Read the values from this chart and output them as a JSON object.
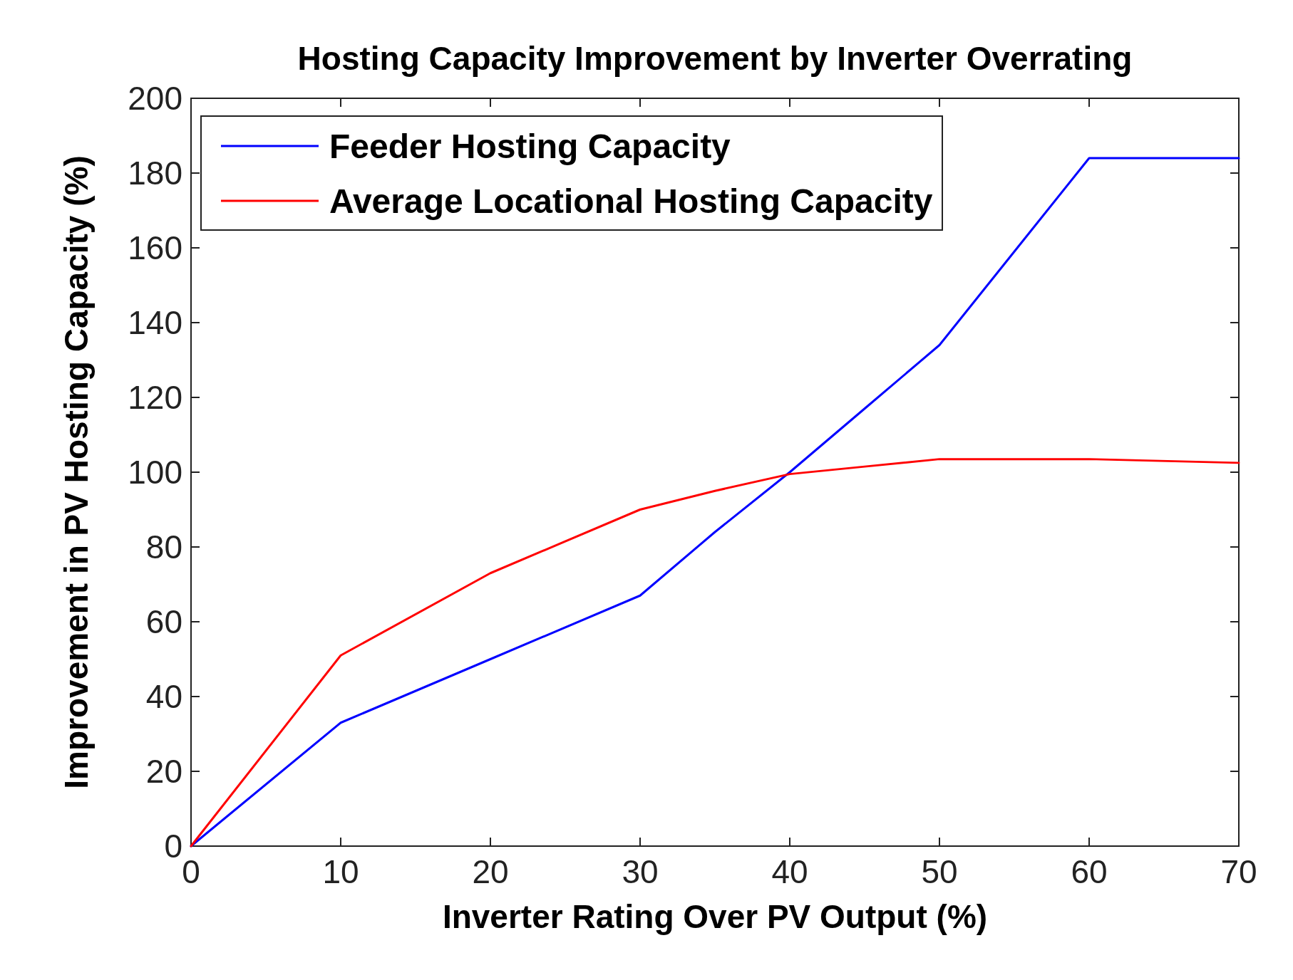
{
  "chart_data": {
    "type": "line",
    "title": "Hosting Capacity Improvement by Inverter Overrating",
    "xlabel": "Inverter Rating Over PV Output (%)",
    "ylabel": "Improvement in PV Hosting Capacity (%)",
    "xlim": [
      0,
      70
    ],
    "xticks": [
      0,
      10,
      20,
      30,
      40,
      50,
      60,
      70
    ],
    "ylim": [
      0,
      200
    ],
    "yticks": [
      0,
      20,
      40,
      60,
      80,
      100,
      120,
      140,
      160,
      180,
      200
    ],
    "grid": false,
    "legend": "top left",
    "marker": "none",
    "line_style": "solid",
    "series": [
      {
        "name": "Feeder Hosting Capacity",
        "color": "#0000ff",
        "x": [
          0,
          10,
          20,
          30,
          35,
          40,
          45,
          50,
          55,
          60,
          70
        ],
        "values": [
          0,
          33,
          50,
          67,
          84,
          100,
          117,
          134,
          159,
          184,
          184
        ]
      },
      {
        "name": "Average Locational Hosting Capacity",
        "color": "#ff0000",
        "x": [
          0,
          10,
          20,
          30,
          35,
          40,
          45,
          50,
          55,
          60,
          70
        ],
        "values": [
          0,
          51,
          73,
          90,
          95,
          99.5,
          101.5,
          103.5,
          103.5,
          103.5,
          102.5
        ]
      }
    ]
  }
}
